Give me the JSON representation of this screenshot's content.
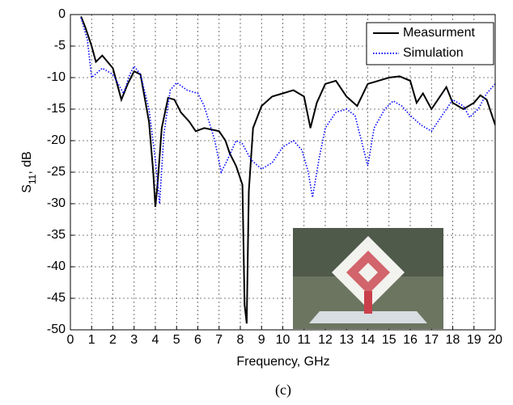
{
  "chart_data": {
    "type": "line",
    "x_label": "Frequency, GHz",
    "y_label_parts": [
      "S",
      "11",
      ", dB"
    ],
    "caption": "(c)",
    "xlim": [
      0,
      20
    ],
    "xticks": [
      0,
      1,
      2,
      3,
      4,
      5,
      6,
      7,
      8,
      9,
      10,
      11,
      12,
      13,
      14,
      15,
      16,
      17,
      18,
      19,
      20
    ],
    "ylim": [
      -50,
      0
    ],
    "yticks": [
      0,
      -5,
      -10,
      -15,
      -20,
      -25,
      -30,
      -35,
      -40,
      -45,
      -50
    ],
    "grid": true,
    "legend": "upper right",
    "series": [
      {
        "name": "Measurment",
        "color": "#000000",
        "style": "solid",
        "x": [
          0.5,
          0.7,
          1.0,
          1.2,
          1.5,
          2.0,
          2.4,
          2.7,
          3.0,
          3.3,
          3.7,
          3.9,
          4.0,
          4.1,
          4.3,
          4.6,
          4.9,
          5.2,
          5.6,
          5.9,
          6.3,
          6.6,
          7.0,
          7.3,
          7.5,
          7.8,
          8.0,
          8.1,
          8.2,
          8.3,
          8.4,
          8.6,
          9.0,
          9.5,
          10.0,
          10.5,
          11.0,
          11.3,
          11.6,
          12.0,
          12.5,
          13.0,
          13.5,
          14.0,
          14.5,
          15.0,
          15.5,
          16.0,
          16.3,
          16.6,
          17.0,
          17.4,
          17.7,
          18.0,
          18.5,
          19.0,
          19.3,
          19.6,
          20.0
        ],
        "values": [
          -0.3,
          -2,
          -5,
          -7.5,
          -6.5,
          -8.5,
          -13.5,
          -11,
          -9,
          -9.5,
          -17,
          -25,
          -30.5,
          -27,
          -18,
          -13.2,
          -13.5,
          -15.5,
          -17,
          -18.5,
          -18,
          -18.2,
          -18.5,
          -20,
          -22,
          -24,
          -26,
          -27,
          -46,
          -49,
          -28,
          -18,
          -14.5,
          -13,
          -12.5,
          -12,
          -13,
          -18,
          -14,
          -11,
          -10.5,
          -13,
          -14.5,
          -11,
          -10.5,
          -10,
          -9.8,
          -10.5,
          -14,
          -12.5,
          -15,
          -13,
          -11.5,
          -14,
          -15,
          -14,
          -12.8,
          -13.5,
          -17.5
        ]
      },
      {
        "name": "Simulation",
        "color": "#0000ff",
        "style": "dotted",
        "x": [
          0.5,
          0.8,
          1.0,
          1.5,
          2.0,
          2.5,
          2.8,
          3.0,
          3.3,
          3.7,
          4.0,
          4.2,
          4.4,
          4.7,
          5.0,
          5.5,
          6.0,
          6.3,
          6.8,
          7.1,
          7.4,
          7.8,
          8.1,
          8.5,
          9.0,
          9.5,
          10.0,
          10.5,
          10.9,
          11.2,
          11.4,
          11.7,
          12.0,
          12.5,
          13.0,
          13.4,
          13.7,
          14.0,
          14.3,
          14.8,
          15.2,
          15.6,
          16.0,
          16.5,
          17.0,
          17.3,
          17.7,
          18.0,
          18.5,
          18.8,
          19.2,
          19.6,
          20.0
        ],
        "values": [
          -0.5,
          -4,
          -10,
          -8.5,
          -9.5,
          -12.5,
          -9.5,
          -8.2,
          -9.5,
          -15,
          -23,
          -30,
          -19,
          -12,
          -10.8,
          -12,
          -12.5,
          -14.5,
          -20,
          -25,
          -23,
          -20,
          -20.5,
          -23,
          -24.5,
          -23.5,
          -21,
          -20,
          -21.5,
          -25,
          -29,
          -23,
          -18,
          -15.5,
          -15,
          -16,
          -20,
          -24,
          -18,
          -15,
          -13.7,
          -14.5,
          -16,
          -17.5,
          -18.5,
          -17,
          -15,
          -13.5,
          -14.5,
          -16.3,
          -15,
          -12.5,
          -11
        ]
      }
    ]
  }
}
